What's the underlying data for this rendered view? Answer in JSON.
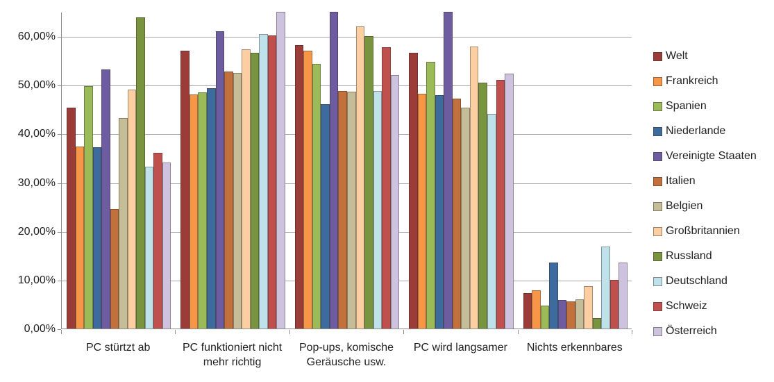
{
  "chart_data": {
    "type": "bar",
    "title": "",
    "xlabel": "",
    "ylabel": "",
    "ylim": [
      0,
      65
    ],
    "y_tick_labels": [
      "0,00%",
      "10,00%",
      "20,00%",
      "30,00%",
      "40,00%",
      "50,00%",
      "60,00%"
    ],
    "y_tick_values": [
      0,
      10,
      20,
      30,
      40,
      50,
      60
    ],
    "grid": "horizontal",
    "legend_position": "right",
    "value_format": "percent",
    "categories": [
      "PC stürtzt ab",
      "PC funktioniert nicht mehr richtig",
      "Pop-ups, komische Geräusche usw.",
      "PC wird langsamer",
      "Nichts erkennbares"
    ],
    "series": [
      {
        "name": "Welt",
        "color": "#9c3c38",
        "values": [
          45.3,
          57.0,
          58.1,
          56.6,
          7.3
        ]
      },
      {
        "name": "Frankreich",
        "color": "#f79646",
        "values": [
          37.4,
          48.1,
          57.0,
          48.2,
          7.8
        ]
      },
      {
        "name": "Spanien",
        "color": "#9bbb59",
        "values": [
          49.8,
          48.5,
          54.3,
          54.7,
          4.7
        ]
      },
      {
        "name": "Niederlande",
        "color": "#3e6b9e",
        "values": [
          37.2,
          49.3,
          46.0,
          47.9,
          13.5
        ]
      },
      {
        "name": "Vereinigte Staaten",
        "color": "#6e5ca0",
        "values": [
          53.1,
          61.0,
          65.0,
          65.0,
          5.8
        ]
      },
      {
        "name": "Italien",
        "color": "#c2713c",
        "values": [
          24.5,
          52.7,
          48.8,
          47.2,
          5.6
        ]
      },
      {
        "name": "Belgien",
        "color": "#c4bd97",
        "values": [
          43.2,
          52.4,
          48.6,
          45.3,
          6.0
        ]
      },
      {
        "name": "Großbritannien",
        "color": "#fbcfa2",
        "values": [
          49.0,
          57.3,
          62.0,
          57.9,
          8.7
        ]
      },
      {
        "name": "Russland",
        "color": "#78943e",
        "values": [
          63.8,
          56.6,
          60.0,
          50.4,
          2.1
        ]
      },
      {
        "name": "Deutschland",
        "color": "#bfe2ea",
        "values": [
          33.2,
          60.5,
          48.7,
          44.0,
          16.8
        ]
      },
      {
        "name": "Schweiz",
        "color": "#c0504d",
        "values": [
          36.1,
          60.1,
          57.7,
          51.1,
          10.0
        ]
      },
      {
        "name": "Österreich",
        "color": "#cdc3de",
        "values": [
          34.1,
          65.0,
          52.0,
          52.3,
          13.5
        ]
      }
    ]
  }
}
